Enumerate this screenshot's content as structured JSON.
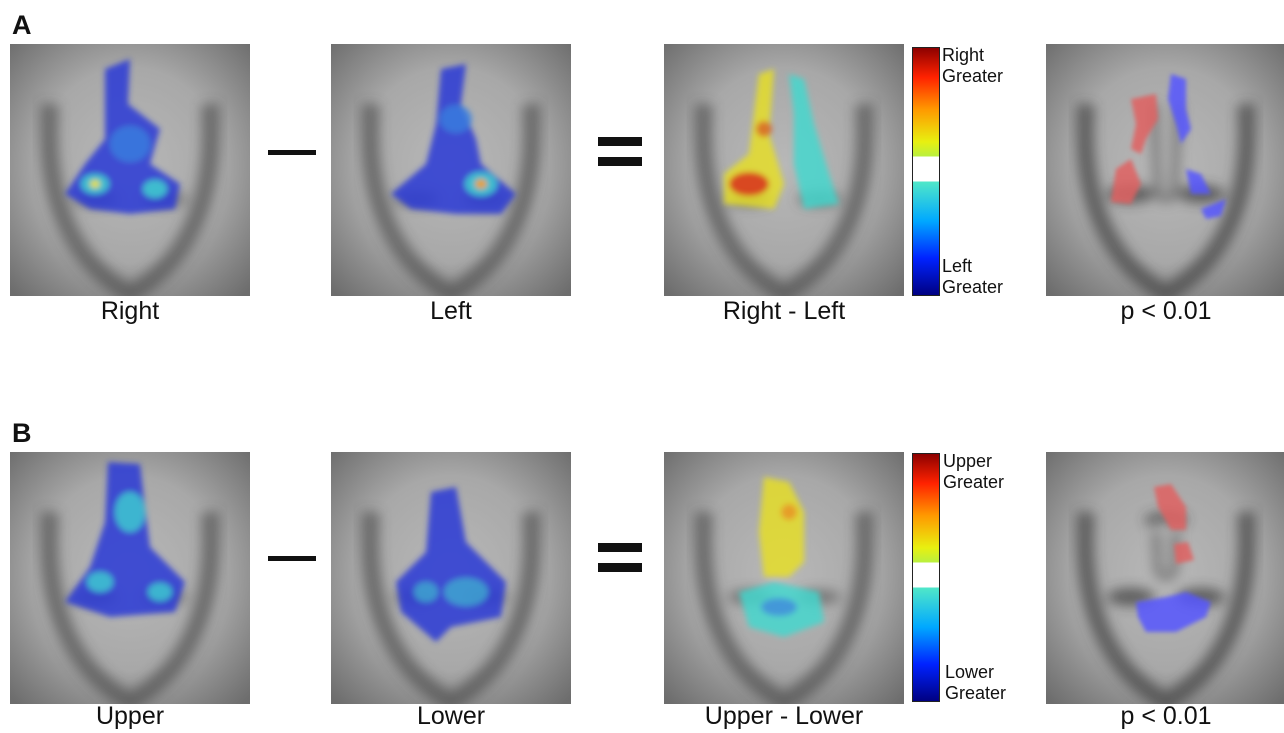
{
  "panels": [
    {
      "letter": "A",
      "captions": [
        "Right",
        "Left",
        "Right - Left",
        "p < 0.01"
      ],
      "colorbar": {
        "top": [
          "Right",
          "Greater"
        ],
        "bottom": [
          "Left",
          "Greater"
        ]
      }
    },
    {
      "letter": "B",
      "captions": [
        "Upper",
        "Lower",
        "Upper - Lower",
        "p < 0.01"
      ],
      "colorbar": {
        "top": [
          "Upper",
          "Greater"
        ],
        "bottom": [
          "Lower",
          "Greater"
        ]
      }
    }
  ],
  "colors": {
    "heat_blue": "#2a3ad6",
    "heat_cyan": "#3fd9d0",
    "heat_yellow": "#e8e020",
    "heat_red": "#d8301a",
    "sig_red": "#e06060",
    "sig_blue": "#5555ff"
  }
}
